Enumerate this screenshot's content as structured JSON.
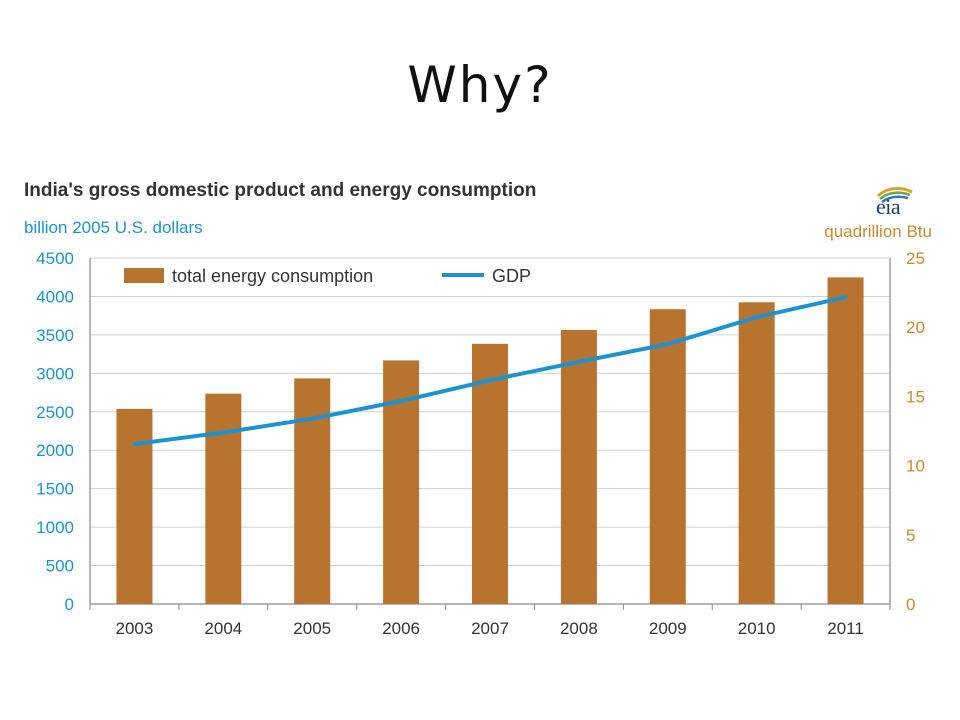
{
  "slide": {
    "title": "Why?"
  },
  "logo": {
    "text": "eia"
  },
  "colors": {
    "bar": "#b8732e",
    "line": "#1b93d3",
    "left_axis": "#1b93d3",
    "right_axis": "#c98a30",
    "title": "#333333",
    "axis": "#8a8a8a",
    "grid": "#d0d0d0"
  },
  "chart_data": {
    "type": "bar",
    "title": "India's gross  domestic  product  and energy consumption",
    "left_unit": "billion 2005 U.S. dollars",
    "right_unit": "quadrillion Btu",
    "categories": [
      "2003",
      "2004",
      "2005",
      "2006",
      "2007",
      "2008",
      "2009",
      "2010",
      "2011"
    ],
    "series": [
      {
        "name": "total energy consumption",
        "type": "bar",
        "axis": "right",
        "values": [
          14.1,
          15.2,
          16.3,
          17.6,
          18.8,
          19.8,
          21.3,
          21.8,
          23.6
        ]
      },
      {
        "name": "GDP",
        "type": "line",
        "axis": "left",
        "values": [
          2080,
          2230,
          2410,
          2640,
          2910,
          3150,
          3380,
          3730,
          3990
        ]
      }
    ],
    "left_axis": {
      "ylim": [
        0,
        4500
      ],
      "ticks": [
        "0",
        "500",
        "1000",
        "1500",
        "2000",
        "2500",
        "3000",
        "3500",
        "4000",
        "4500"
      ]
    },
    "right_axis": {
      "ylim": [
        0,
        25
      ],
      "ticks": [
        "0",
        "5",
        "10",
        "15",
        "20",
        "25"
      ]
    },
    "grid": true,
    "legend_position": "top-left"
  }
}
